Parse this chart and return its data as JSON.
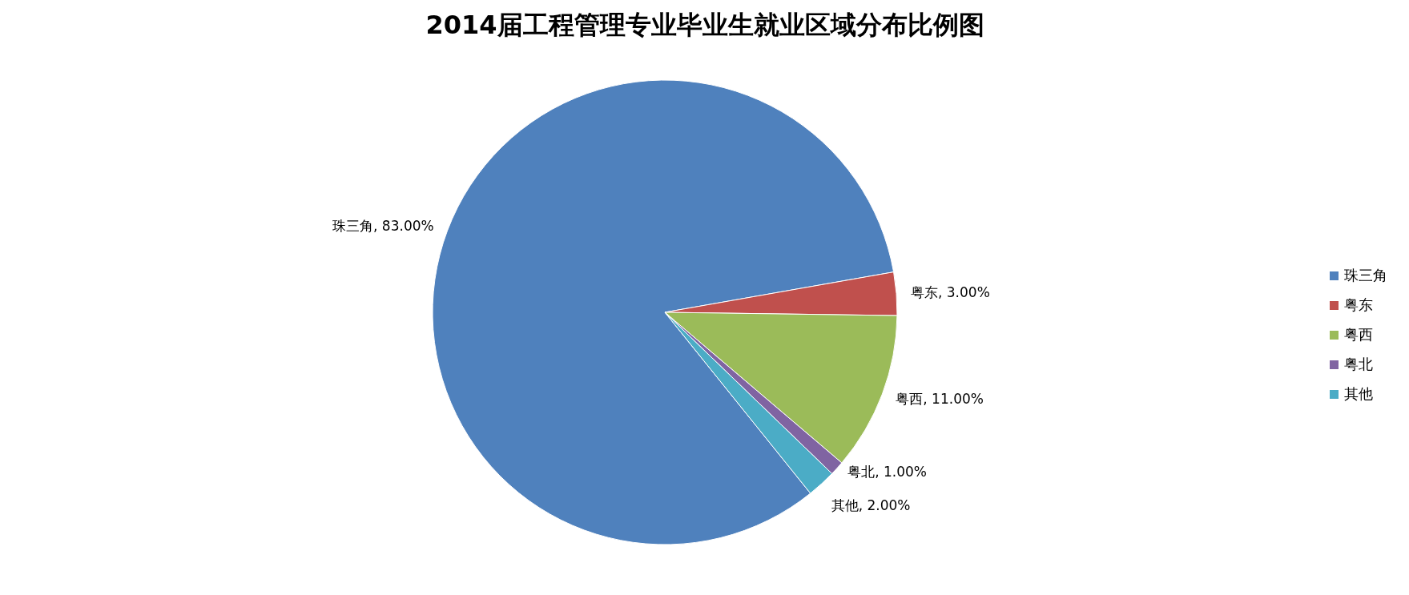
{
  "chart_data": {
    "type": "pie",
    "title": "2014届工程管理专业毕业生就业区域分布比例图",
    "categories": [
      "珠三角",
      "粤东",
      "粤西",
      "粤北",
      "其他"
    ],
    "values": [
      83,
      3,
      11,
      1,
      2
    ],
    "value_labels": [
      "珠三角, 83.00%",
      "粤东, 3.00%",
      "粤西, 11.00%",
      "粤北, 1.00%",
      "其他, 2.00%"
    ],
    "colors": [
      "#4f81bd",
      "#c0504d",
      "#9bbb59",
      "#8064a2",
      "#4bacc6"
    ],
    "legend": "right"
  }
}
